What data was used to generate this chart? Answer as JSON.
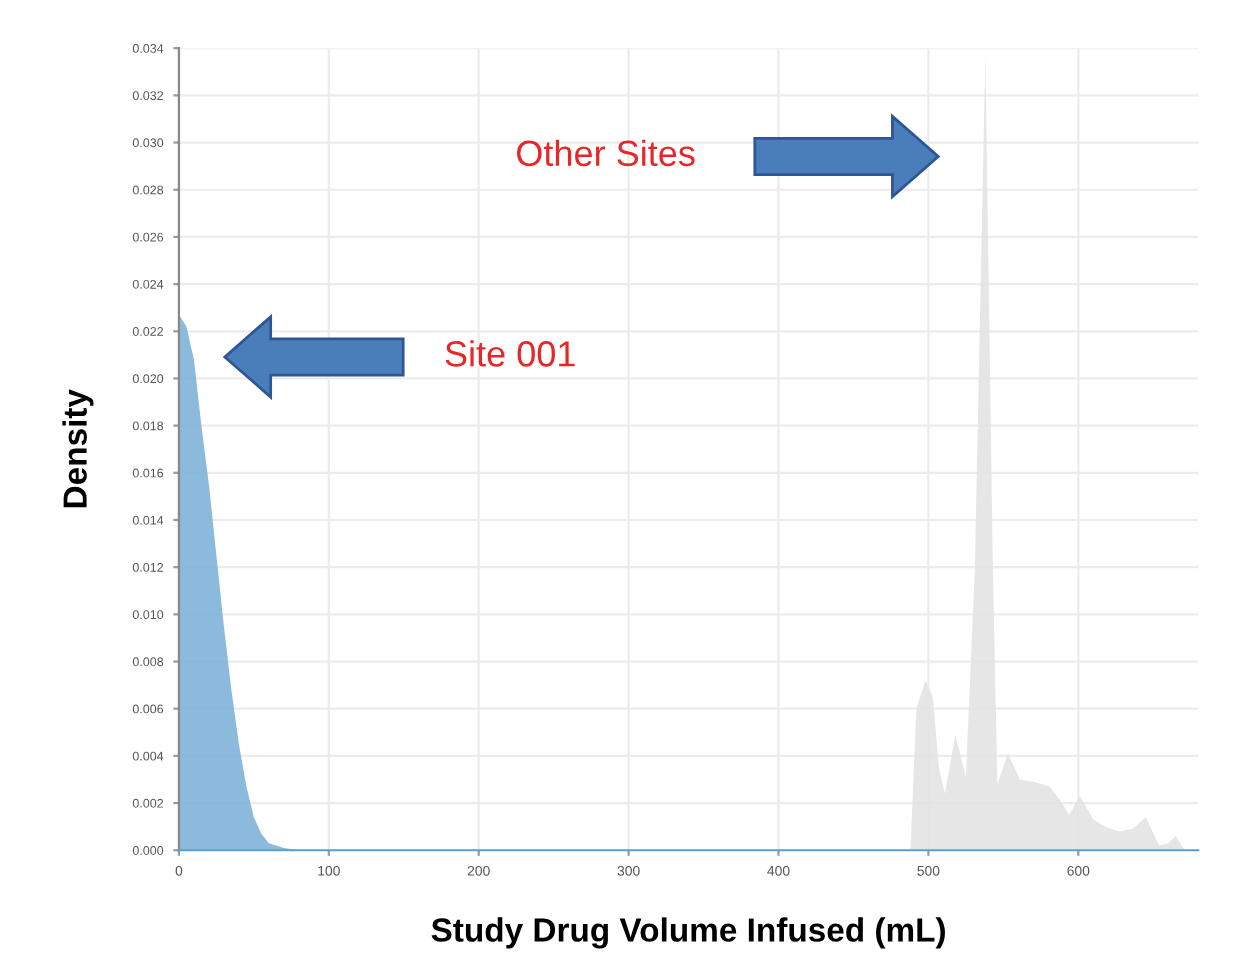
{
  "chart_data": {
    "type": "area",
    "xlabel": "Study Drug Volume Infused (mL)",
    "ylabel": "Density",
    "series": [
      {
        "color": "#7fb2d9",
        "x": [
          0,
          5,
          10,
          15,
          20,
          25,
          30,
          35,
          40,
          45,
          50,
          55,
          60,
          70,
          80,
          680
        ],
        "values": [
          0.0227,
          0.0222,
          0.0208,
          0.018,
          0.0155,
          0.0125,
          0.0095,
          0.0068,
          0.0045,
          0.0027,
          0.0014,
          0.0007,
          0.0003,
          0.0001,
          0,
          0
        ]
      },
      {
        "color": "#e3e3e3",
        "x": [
          488,
          492,
          498,
          503,
          507,
          511,
          518,
          525,
          531,
          538,
          543,
          546,
          553,
          561,
          570,
          581,
          588,
          594,
          601,
          610,
          618,
          627,
          636,
          645,
          654,
          660,
          665,
          671,
          680
        ],
        "values": [
          0,
          0.006,
          0.0072,
          0.0065,
          0.0035,
          0.0024,
          0.0049,
          0.0031,
          0.012,
          0.0337,
          0.012,
          0.0028,
          0.0041,
          0.003,
          0.0029,
          0.0027,
          0.0021,
          0.0015,
          0.0023,
          0.0013,
          0.001,
          0.0008,
          0.0009,
          0.0014,
          0.0002,
          0.0003,
          0.0006,
          0,
          0
        ]
      }
    ],
    "xlim": [
      0,
      680
    ],
    "ylim": [
      0,
      0.034
    ],
    "xticks": [
      0,
      100,
      200,
      300,
      400,
      500,
      600
    ],
    "yticks": [
      {
        "value": 0,
        "label": "0.000"
      },
      {
        "value": 0.002,
        "label": "0.002"
      },
      {
        "value": 0.004,
        "label": "0.004"
      },
      {
        "value": 0.006,
        "label": "0.006"
      },
      {
        "value": 0.008,
        "label": "0.008"
      },
      {
        "value": 0.01,
        "label": "0.010"
      },
      {
        "value": 0.012,
        "label": "0.012"
      },
      {
        "value": 0.014,
        "label": "0.014"
      },
      {
        "value": 0.016,
        "label": "0.016"
      },
      {
        "value": 0.018,
        "label": "0.018"
      },
      {
        "value": 0.02,
        "label": "0.020"
      },
      {
        "value": 0.022,
        "label": "0.022"
      },
      {
        "value": 0.024,
        "label": "0.024"
      },
      {
        "value": 0.026,
        "label": "0.026"
      },
      {
        "value": 0.028,
        "label": "0.028"
      },
      {
        "value": 0.03,
        "label": "0.030"
      },
      {
        "value": 0.032,
        "label": "0.032"
      },
      {
        "value": 0.034,
        "label": "0.034"
      }
    ],
    "annotations": [
      "Other Sites",
      "Site 001"
    ],
    "grid": true,
    "legend": false
  }
}
